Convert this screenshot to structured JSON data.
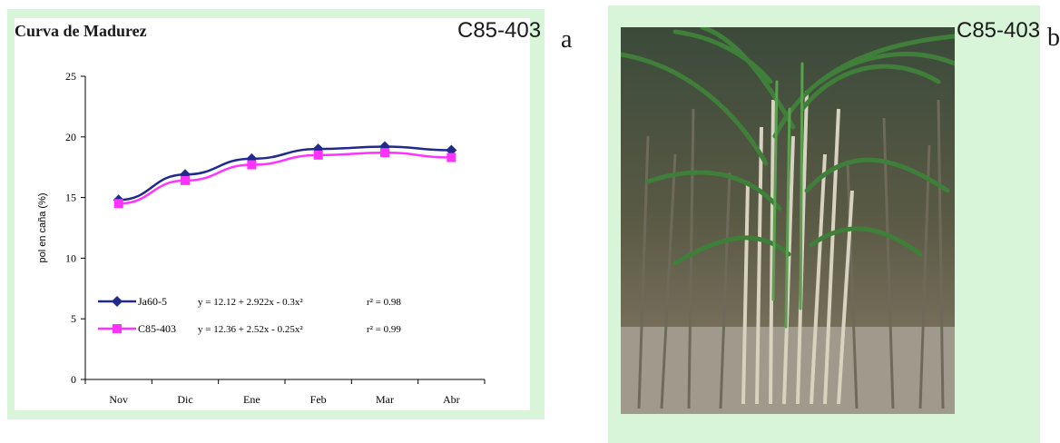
{
  "panel_a": {
    "variety_label": "C85-403",
    "panel_letter": "a"
  },
  "panel_b": {
    "variety_label": "C85-403",
    "panel_letter": "b"
  },
  "chart_data": {
    "type": "line",
    "title": "Curva de Madurez",
    "xlabel": "",
    "ylabel": "pol en caña (%)",
    "categories": [
      "Nov",
      "Dic",
      "Ene",
      "Feb",
      "Mar",
      "Abr"
    ],
    "ylim": [
      0,
      25
    ],
    "yticks": [
      0,
      5,
      10,
      15,
      20,
      25
    ],
    "grid": false,
    "legend_position": "bottom-left",
    "series": [
      {
        "name": "Ja60-5",
        "values": [
          14.8,
          16.9,
          18.2,
          19.0,
          19.2,
          18.9
        ],
        "color": "#1f2a8c",
        "marker": "diamond",
        "equation": "y = 12.12 + 2.922x - 0.3x²",
        "r2": "r² = 0.98"
      },
      {
        "name": "C85-403",
        "values": [
          14.5,
          16.4,
          17.7,
          18.5,
          18.7,
          18.3
        ],
        "color": "#ff33ff",
        "marker": "square",
        "equation": "y = 12.36 + 2.52x - 0.25x²",
        "r2": "r² = 0.99"
      }
    ]
  }
}
